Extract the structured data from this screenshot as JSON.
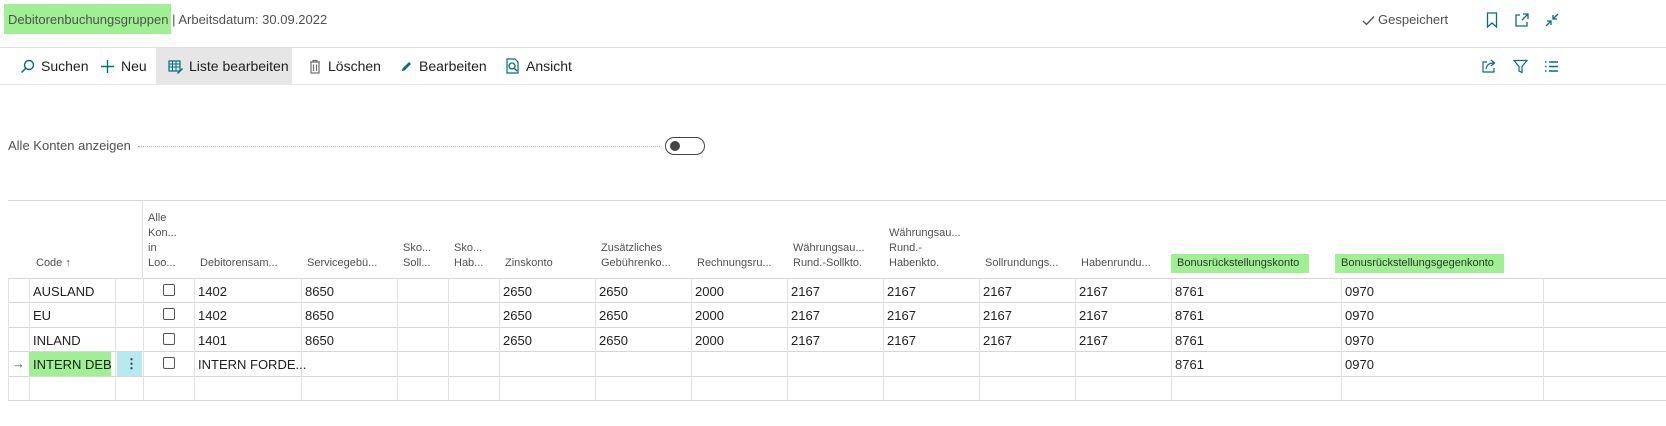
{
  "header": {
    "page_title": "Debitorenbuchungsgruppen",
    "work_date": " | Arbeitsdatum: 30.09.2022",
    "saved_status": "Gespeichert"
  },
  "actions": {
    "search": "Suchen",
    "new": "Neu",
    "edit_list": "Liste bearbeiten",
    "delete": "Löschen",
    "edit": "Bearbeiten",
    "view": "Ansicht"
  },
  "filter": {
    "show_all_label": "Alle Konten anzeigen",
    "show_all_value": false
  },
  "table": {
    "columns": {
      "code": "Code ↑",
      "all_accounts_1": "Alle",
      "all_accounts_2": "Kon...",
      "all_accounts_3": "in",
      "all_accounts_4": "Loo...",
      "receivables": "Debitorensam...",
      "service_charge": "Servicegebü...",
      "disc_debit_1": "Sko...",
      "disc_debit_2": "Soll...",
      "disc_credit_1": "Sko...",
      "disc_credit_2": "Hab...",
      "interest": "Zinskonto",
      "add_fee_1": "Zusätzliches",
      "add_fee_2": "Gebührenko...",
      "invoice_rounding": "Rechnungsru...",
      "curr_debit_1": "Währungsau...",
      "curr_debit_2": "Rund.-Sollkto.",
      "curr_credit_1": "Währungsau...",
      "curr_credit_2": "Rund.-",
      "curr_credit_3": "Habenkto.",
      "debit_rounding": "Sollrundungs...",
      "credit_rounding": "Habenrundu...",
      "bonus_provision": "Bonusrückstellungskonto",
      "bonus_provision_counter": "Bonusrückstellungsgegenkonto"
    },
    "rows": [
      {
        "code": "AUSLAND",
        "receivables": "1402",
        "service": "8650",
        "interest": "2650",
        "add_fee": "2650",
        "inv_round": "2000",
        "curr_debit": "2167",
        "curr_credit": "2167",
        "debit_round": "2167",
        "credit_round": "2167",
        "bonus": "8761",
        "bonus_counter": "0970"
      },
      {
        "code": "EU",
        "receivables": "1402",
        "service": "8650",
        "interest": "2650",
        "add_fee": "2650",
        "inv_round": "2000",
        "curr_debit": "2167",
        "curr_credit": "2167",
        "debit_round": "2167",
        "credit_round": "2167",
        "bonus": "8761",
        "bonus_counter": "0970"
      },
      {
        "code": "INLAND",
        "receivables": "1401",
        "service": "8650",
        "interest": "2650",
        "add_fee": "2650",
        "inv_round": "2000",
        "curr_debit": "2167",
        "curr_credit": "2167",
        "debit_round": "2167",
        "credit_round": "2167",
        "bonus": "8761",
        "bonus_counter": "0970"
      },
      {
        "code": "INTERN DEB",
        "receivables": "INTERN FORDE...",
        "service": "",
        "interest": "",
        "add_fee": "",
        "inv_round": "",
        "curr_debit": "",
        "curr_credit": "",
        "debit_round": "",
        "credit_round": "",
        "bonus": "8761",
        "bonus_counter": "0970"
      }
    ],
    "row_action_symbol": "⋮",
    "current_row_marker": "→"
  },
  "colors": {
    "highlight_green": "#9ef092",
    "highlight_cyan": "#b6e9f0",
    "accent": "#00707a"
  }
}
